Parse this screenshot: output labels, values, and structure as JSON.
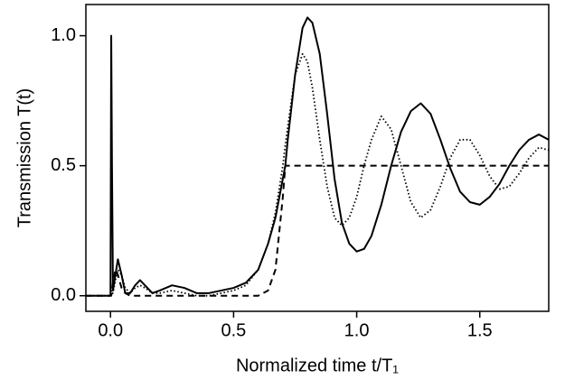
{
  "chart_data": {
    "type": "line",
    "x_label": "Normalized time t/T₁",
    "y_label": "Transmission T(t)",
    "x": [
      -0.1,
      0,
      0.003,
      0.006,
      0.01,
      0.02,
      0.03,
      0.045,
      0.06,
      0.08,
      0.1,
      0.12,
      0.14,
      0.17,
      0.2,
      0.25,
      0.3,
      0.35,
      0.4,
      0.45,
      0.5,
      0.55,
      0.6,
      0.64,
      0.67,
      0.7,
      0.71,
      0.72,
      0.75,
      0.78,
      0.8,
      0.82,
      0.85,
      0.88,
      0.91,
      0.94,
      0.97,
      1.0,
      1.03,
      1.06,
      1.1,
      1.14,
      1.18,
      1.22,
      1.26,
      1.3,
      1.34,
      1.38,
      1.42,
      1.46,
      1.5,
      1.54,
      1.58,
      1.62,
      1.66,
      1.7,
      1.74,
      1.78
    ],
    "series": [
      {
        "color": "#000000",
        "dash": "solid",
        "values": [
          0,
          0,
          1.0,
          0.5,
          0.02,
          0.08,
          0.14,
          0.08,
          0.01,
          0.01,
          0.04,
          0.06,
          0.04,
          0.01,
          0.02,
          0.04,
          0.03,
          0.01,
          0.01,
          0.02,
          0.03,
          0.05,
          0.1,
          0.2,
          0.3,
          0.45,
          0.5,
          0.6,
          0.85,
          1.03,
          1.07,
          1.05,
          0.93,
          0.7,
          0.45,
          0.28,
          0.2,
          0.17,
          0.18,
          0.23,
          0.35,
          0.5,
          0.63,
          0.71,
          0.74,
          0.7,
          0.6,
          0.49,
          0.4,
          0.36,
          0.35,
          0.38,
          0.43,
          0.5,
          0.56,
          0.6,
          0.62,
          0.6
        ]
      },
      {
        "color": "#000000",
        "dash": "dotted",
        "values": [
          0,
          0,
          0.02,
          0.01,
          0.01,
          0.06,
          0.1,
          0.08,
          0.03,
          0.01,
          0.03,
          0.04,
          0.03,
          0.01,
          0.01,
          0.02,
          0.01,
          0,
          0,
          0.01,
          0.02,
          0.04,
          0.1,
          0.2,
          0.32,
          0.5,
          0.58,
          0.65,
          0.85,
          0.93,
          0.9,
          0.8,
          0.6,
          0.42,
          0.3,
          0.27,
          0.3,
          0.38,
          0.5,
          0.6,
          0.69,
          0.64,
          0.5,
          0.36,
          0.3,
          0.33,
          0.42,
          0.53,
          0.6,
          0.6,
          0.54,
          0.46,
          0.41,
          0.42,
          0.47,
          0.53,
          0.57,
          0.56
        ]
      },
      {
        "color": "#000000",
        "dash": "dashed",
        "values": [
          0,
          0,
          0,
          0.02,
          0.05,
          0.1,
          0.08,
          0.03,
          0.01,
          0,
          0,
          0,
          0,
          0,
          0,
          0,
          0,
          0,
          0,
          0,
          0,
          0,
          0,
          0.02,
          0.1,
          0.38,
          0.5,
          0.5,
          0.5,
          0.5,
          0.5,
          0.5,
          0.5,
          0.5,
          0.5,
          0.5,
          0.5,
          0.5,
          0.5,
          0.5,
          0.5,
          0.5,
          0.5,
          0.5,
          0.5,
          0.5,
          0.5,
          0.5,
          0.5,
          0.5,
          0.5,
          0.5,
          0.5,
          0.5,
          0.5,
          0.5,
          0.5,
          0.5
        ]
      }
    ],
    "xlim": [
      -0.1,
      1.78
    ],
    "ylim": [
      -0.06,
      1.12
    ],
    "xticks": [
      {
        "value": 0,
        "label": "0.0"
      },
      0.5,
      {
        "value": 1,
        "label": "1.0"
      },
      1.5
    ],
    "yticks": [
      {
        "value": 0,
        "label": "0.0"
      },
      0.5,
      {
        "value": 1,
        "label": "1.0"
      }
    ],
    "grid": false
  }
}
